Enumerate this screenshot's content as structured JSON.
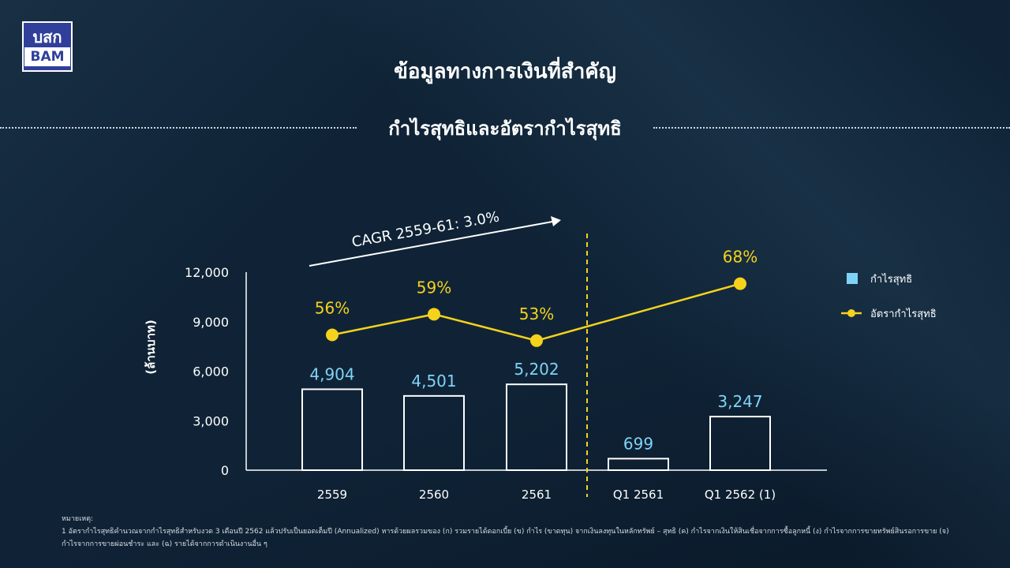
{
  "logo": {
    "line1": "บสก",
    "line2": "BAM"
  },
  "header": {
    "title": "ข้อมูลทางการเงินที่สำคัญ",
    "subtitle": "กำไรสุทธิและอัตรากำไรสุทธิ"
  },
  "colors": {
    "bar_outline": "#ffffff",
    "bar_label": "#7fd3f7",
    "line": "#f5d21c",
    "legend_bar": "#7fd3f7",
    "divider": "#f5d21c",
    "cagr_text": "#ffffff"
  },
  "chart_data": {
    "type": "bar",
    "categories": [
      "2559",
      "2560",
      "2561",
      "Q1 2561",
      "Q1 2562 (1)"
    ],
    "series": [
      {
        "name": "กำไรสุทธิ",
        "type": "bar",
        "values": [
          4904,
          4501,
          5202,
          699,
          3247
        ],
        "labels": [
          "4,904",
          "4,501",
          "5,202",
          "699",
          "3,247"
        ]
      },
      {
        "name": "อัตรากำไรสุทธิ",
        "type": "line",
        "values": [
          56,
          59,
          53,
          null,
          68
        ],
        "labels": [
          "56%",
          "59%",
          "53%",
          "",
          "68%"
        ]
      }
    ],
    "ylabel": "(ล้านบาท)",
    "ylim": [
      0,
      12000
    ],
    "yticks": [
      "12,000",
      "9,000",
      "6,000",
      "3,000",
      "0"
    ],
    "ytick_values": [
      12000,
      9000,
      6000,
      3000,
      0
    ],
    "line_value_scale": {
      "56": 8200,
      "59": 9450,
      "53": 7850,
      "68": 11300
    },
    "annotation": "CAGR 2559-61: 3.0%",
    "legend_position": "right",
    "grid": false
  },
  "notes": {
    "heading": "หมายเหตุ:",
    "line1": "1 อัตรากำไรสุทธิคำนวณจากกำไรสุทธิสำหรับงวด 3 เดือนปี 2562 แล้วปรับเป็นยอดเต็มปี (Annualized) หารด้วยผลรวมของ (ก) รวมรายได้ดอกเบี้ย (ข) กำไร (ขาดทุน) จากเงินลงทุนในหลักทรัพย์ – สุทธิ (ค) กำไรจากเงินให้สินเชื่อจากการซื้อลูกหนี้ (ง) กำไรจากการขายทรัพย์สินรอการขาย (จ)",
    "line2": "กำไรจากการขายผ่อนชำระ และ (ฉ) รายได้จากการดำเนินงานอื่น ๆ"
  }
}
